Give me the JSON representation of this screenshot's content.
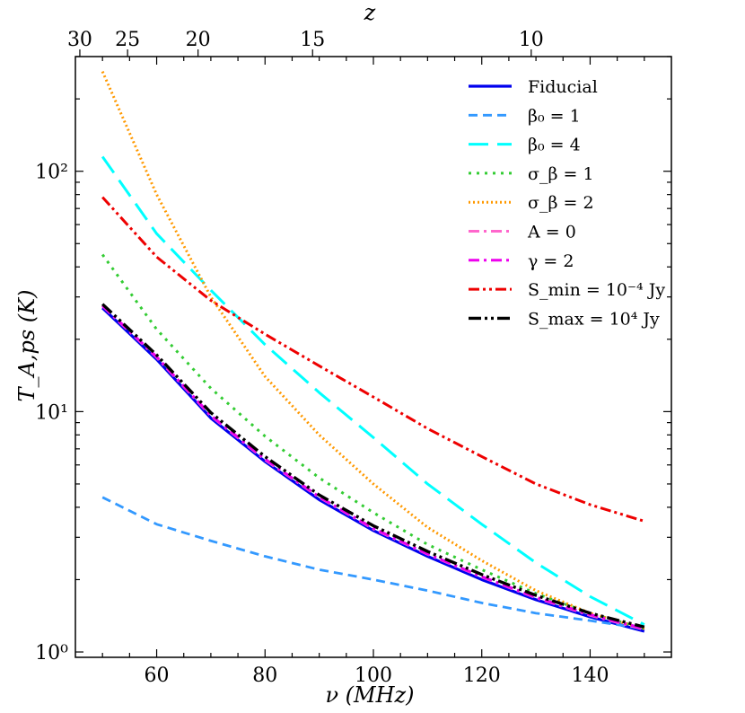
{
  "chart_data": {
    "type": "line",
    "xlabel": "ν (MHz)",
    "ylabel": "T_A,ps (K)",
    "top_axis_label": "z",
    "xlim": [
      45,
      155
    ],
    "ylim": [
      0.95,
      300
    ],
    "yscale": "log",
    "x_ticks": [
      60,
      80,
      100,
      120,
      140
    ],
    "x_tick_labels": [
      "60",
      "80",
      "100",
      "120",
      "140"
    ],
    "y_ticks": [
      1,
      10,
      100
    ],
    "y_tick_labels": [
      "10⁰",
      "10¹",
      "10²"
    ],
    "top_ticks": [
      30,
      25,
      20,
      15,
      10
    ],
    "top_tick_labels": [
      "30",
      "25",
      "20",
      "15",
      "10"
    ],
    "legend_position": "top-right",
    "series": [
      {
        "name": "Fiducial",
        "legend": "Fiducial",
        "color": "#0000ee",
        "dash": "",
        "width": 3.2,
        "x": [
          50,
          60,
          70,
          80,
          90,
          100,
          110,
          120,
          130,
          140,
          150
        ],
        "values": [
          27,
          16.5,
          9.4,
          6.2,
          4.3,
          3.2,
          2.5,
          2.0,
          1.65,
          1.4,
          1.22
        ]
      },
      {
        "name": "beta0_1",
        "legend": "β₀ = 1",
        "color": "#3399ff",
        "dash": "10,6",
        "width": 2.8,
        "x": [
          50,
          60,
          70,
          80,
          90,
          100,
          110,
          120,
          130,
          140,
          150
        ],
        "values": [
          4.4,
          3.4,
          2.9,
          2.5,
          2.2,
          2.0,
          1.8,
          1.6,
          1.45,
          1.35,
          1.25
        ]
      },
      {
        "name": "beta0_4",
        "legend": "β₀ = 4",
        "color": "#00ffff",
        "dash": "22,10",
        "width": 3,
        "x": [
          50,
          60,
          70,
          80,
          90,
          100,
          110,
          120,
          130,
          140,
          150
        ],
        "values": [
          115,
          55,
          32,
          19,
          12,
          7.8,
          5.0,
          3.4,
          2.35,
          1.7,
          1.3
        ]
      },
      {
        "name": "sigma_1",
        "legend": "σ_β = 1",
        "color": "#33cc33",
        "dash": "3,6",
        "width": 3,
        "x": [
          50,
          60,
          70,
          80,
          90,
          100,
          110,
          120,
          130,
          140,
          150
        ],
        "values": [
          45,
          22,
          12.5,
          7.9,
          5.3,
          3.8,
          2.8,
          2.2,
          1.75,
          1.45,
          1.25
        ]
      },
      {
        "name": "sigma_2",
        "legend": "σ_β = 2",
        "color": "#ff9900",
        "dash": "2,3",
        "width": 3,
        "x": [
          50,
          60,
          70,
          80,
          90,
          100,
          110,
          120,
          130,
          140,
          150
        ],
        "values": [
          260,
          80,
          30,
          14,
          8.0,
          5.0,
          3.3,
          2.4,
          1.8,
          1.45,
          1.25
        ]
      },
      {
        "name": "A_0",
        "legend": "A = 0",
        "color": "#ff66cc",
        "dash": "12,5,3,5",
        "width": 3,
        "x": [
          50,
          60,
          70,
          80,
          90,
          100,
          110,
          120,
          130,
          140,
          150
        ],
        "values": [
          27.5,
          16.8,
          9.6,
          6.3,
          4.4,
          3.25,
          2.55,
          2.05,
          1.68,
          1.42,
          1.24
        ]
      },
      {
        "name": "gamma_2",
        "legend": "γ = 2",
        "color": "#ee00ee",
        "dash": "12,5,3,5",
        "width": 3,
        "x": [
          50,
          60,
          70,
          80,
          90,
          100,
          110,
          120,
          130,
          140,
          150
        ],
        "values": [
          27.6,
          16.9,
          9.65,
          6.35,
          4.42,
          3.27,
          2.56,
          2.06,
          1.69,
          1.43,
          1.25
        ]
      },
      {
        "name": "Smin",
        "legend": "S_min = 10⁻⁴ Jy",
        "color": "#ee0000",
        "dash": "12,4,3,4,3,4",
        "width": 3,
        "x": [
          50,
          60,
          70,
          80,
          90,
          100,
          110,
          120,
          130,
          140,
          150
        ],
        "values": [
          78,
          44,
          29,
          21,
          15.5,
          11.5,
          8.5,
          6.5,
          5.0,
          4.1,
          3.5
        ]
      },
      {
        "name": "Smax",
        "legend": "S_max = 10⁴ Jy",
        "color": "#000000",
        "dash": "14,4,3,4,3,4",
        "width": 3.4,
        "x": [
          50,
          60,
          70,
          80,
          90,
          100,
          110,
          120,
          130,
          140,
          150
        ],
        "values": [
          28,
          17.2,
          9.9,
          6.5,
          4.5,
          3.35,
          2.62,
          2.1,
          1.72,
          1.45,
          1.27
        ]
      }
    ]
  }
}
